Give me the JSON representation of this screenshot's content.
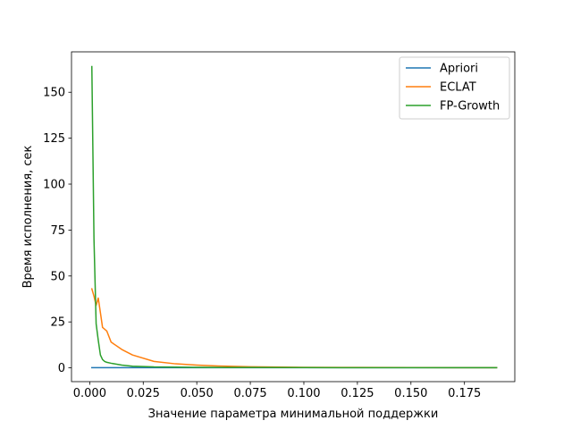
{
  "chart_data": {
    "type": "line",
    "xlabel": "Значение параметра минимальной поддержки",
    "ylabel": "Время исполнения, сек",
    "xlim": [
      -0.0085,
      0.1985
    ],
    "ylim": [
      -7.5,
      172
    ],
    "xticks": [
      0.0,
      0.025,
      0.05,
      0.075,
      0.1,
      0.125,
      0.15,
      0.175
    ],
    "xtick_labels": [
      "0.000",
      "0.025",
      "0.050",
      "0.075",
      "0.100",
      "0.125",
      "0.150",
      "0.175"
    ],
    "yticks": [
      0,
      25,
      50,
      75,
      100,
      125,
      150
    ],
    "ytick_labels": [
      "0",
      "25",
      "50",
      "75",
      "100",
      "125",
      "150"
    ],
    "grid": false,
    "legend_position": "top-right",
    "series": [
      {
        "name": "Apriori",
        "color": "#1f77b4",
        "x": [
          0.001,
          0.002,
          0.003,
          0.004,
          0.005,
          0.006,
          0.008,
          0.01,
          0.02,
          0.03,
          0.05,
          0.075,
          0.1,
          0.125,
          0.15,
          0.175,
          0.19
        ],
        "y": [
          0.1,
          0.1,
          0.1,
          0.1,
          0.1,
          0.1,
          0.1,
          0.1,
          0.1,
          0.1,
          0.1,
          0.1,
          0.1,
          0.1,
          0.1,
          0.1,
          0.1
        ]
      },
      {
        "name": "ECLAT",
        "color": "#ff7f0e",
        "x": [
          0.001,
          0.002,
          0.003,
          0.004,
          0.005,
          0.006,
          0.008,
          0.01,
          0.015,
          0.02,
          0.03,
          0.04,
          0.05,
          0.06,
          0.075,
          0.1,
          0.125,
          0.15,
          0.175,
          0.19
        ],
        "y": [
          43,
          39,
          34,
          38,
          30,
          22,
          20,
          14,
          10,
          7,
          3.5,
          2.2,
          1.5,
          1.0,
          0.6,
          0.3,
          0.2,
          0.15,
          0.12,
          0.1
        ]
      },
      {
        "name": "FP-Growth",
        "color": "#2ca02c",
        "x": [
          0.001,
          0.002,
          0.003,
          0.004,
          0.005,
          0.006,
          0.007,
          0.008,
          0.01,
          0.015,
          0.02,
          0.03,
          0.05,
          0.075,
          0.1,
          0.125,
          0.15,
          0.175,
          0.19
        ],
        "y": [
          164,
          70,
          24,
          15,
          7,
          4.5,
          3.5,
          3.0,
          2.5,
          1.5,
          0.9,
          0.5,
          0.3,
          0.2,
          0.15,
          0.1,
          0.1,
          0.1,
          0.1
        ]
      }
    ]
  }
}
